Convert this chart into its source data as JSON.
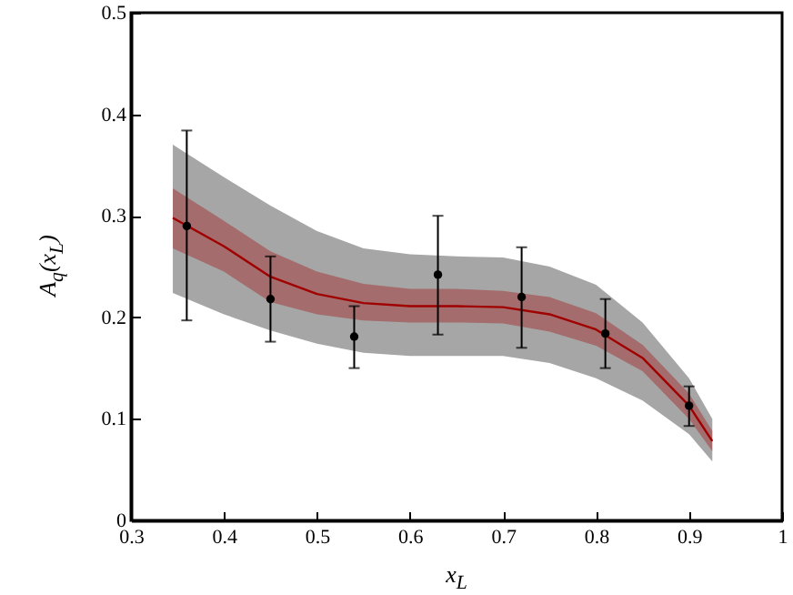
{
  "chart_data": {
    "type": "scatter",
    "xlabel": "x$_{L}$",
    "ylabel": "A$_{q}$(x$_{L}$)",
    "xlim": [
      0.3,
      1
    ],
    "ylim": [
      0,
      0.5
    ],
    "xticks": [
      0.3,
      0.4,
      0.5,
      0.6,
      0.7,
      0.8,
      0.9,
      1
    ],
    "yticks": [
      0,
      0.1,
      0.2,
      0.3,
      0.4,
      0.5
    ],
    "grid": false,
    "series": [
      {
        "type": "line",
        "color": "#a6a6a6",
        "x": [
          0.345,
          0.4,
          0.45,
          0.5,
          0.55,
          0.6,
          0.65,
          0.7,
          0.75,
          0.8,
          0.85,
          0.9,
          0.925
        ],
        "values": [
          null,
          null,
          null,
          null,
          null,
          null,
          null,
          null,
          null,
          null,
          null,
          null,
          null
        ],
        "lower": [
          0.224,
          0.203,
          0.187,
          0.174,
          0.165,
          0.162,
          0.162,
          0.162,
          0.155,
          0.14,
          0.118,
          0.085,
          0.058
        ],
        "upper": [
          0.37,
          0.338,
          0.31,
          0.285,
          0.268,
          0.262,
          0.26,
          0.259,
          0.25,
          0.232,
          0.195,
          0.14,
          0.1
        ]
      },
      {
        "type": "line",
        "color": "#a00000",
        "x": [
          0.345,
          0.4,
          0.45,
          0.5,
          0.55,
          0.6,
          0.65,
          0.7,
          0.75,
          0.8,
          0.85,
          0.9,
          0.925
        ],
        "values": [
          0.298,
          0.27,
          0.24,
          0.223,
          0.214,
          0.211,
          0.211,
          0.21,
          0.203,
          0.188,
          0.16,
          0.113,
          0.078
        ],
        "lower": [
          0.268,
          0.245,
          0.215,
          0.203,
          0.197,
          0.195,
          0.195,
          0.194,
          0.186,
          0.172,
          0.147,
          0.1,
          0.068
        ],
        "upper": [
          0.327,
          0.295,
          0.265,
          0.245,
          0.233,
          0.228,
          0.228,
          0.226,
          0.22,
          0.204,
          0.173,
          0.125,
          0.088
        ]
      },
      {
        "color": "#000000",
        "marker": "circle",
        "x": [
          0.36,
          0.45,
          0.54,
          0.63,
          0.72,
          0.81,
          0.9
        ],
        "values": [
          0.29,
          0.218,
          0.181,
          0.242,
          0.22,
          0.184,
          0.113
        ],
        "errors": [
          [
            0.197,
            0.384
          ],
          [
            0.176,
            0.26
          ],
          [
            0.15,
            0.211
          ],
          [
            0.183,
            0.3
          ],
          [
            0.17,
            0.269
          ],
          [
            0.15,
            0.218
          ],
          [
            0.093,
            0.132
          ]
        ]
      }
    ]
  }
}
